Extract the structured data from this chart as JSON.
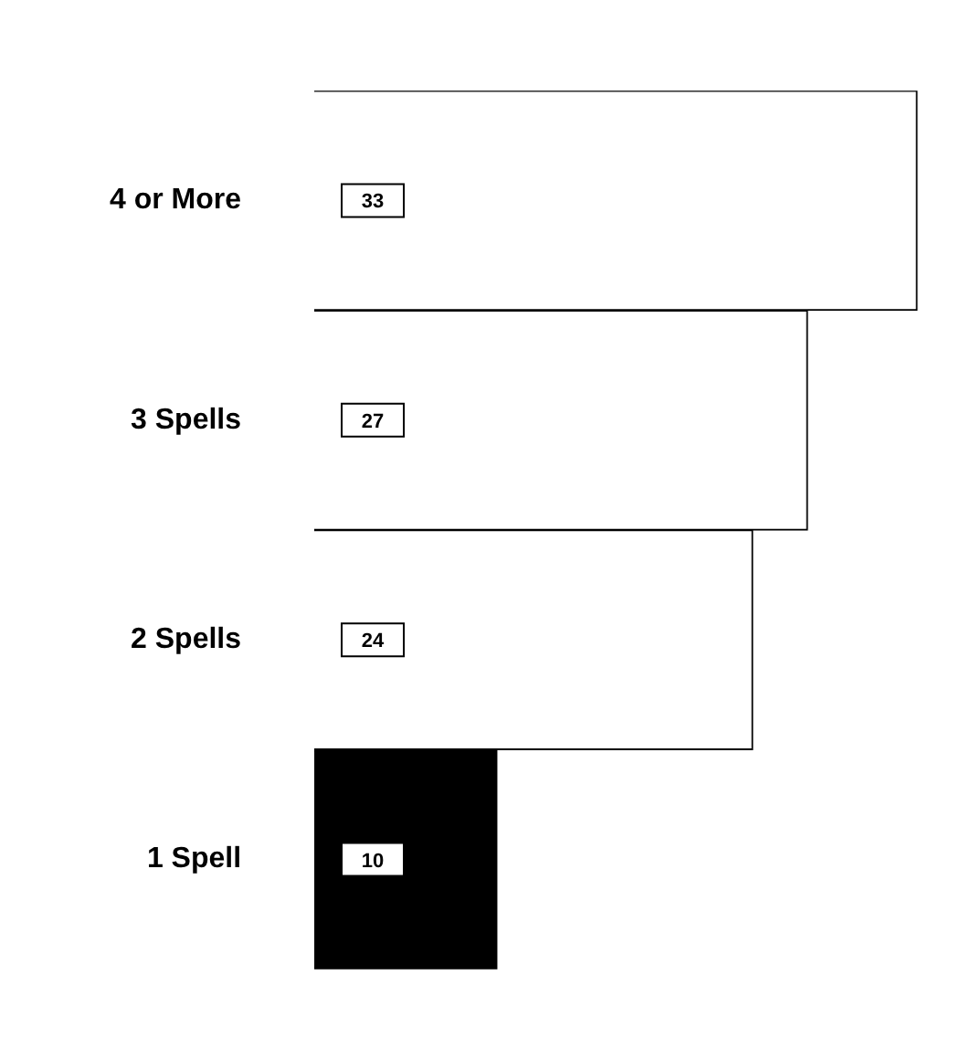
{
  "chart_data": {
    "type": "bar",
    "orientation": "horizontal",
    "categories": [
      "4 or More",
      "3 Spells",
      "2 Spells",
      "1 Spell"
    ],
    "values": [
      33,
      27,
      24,
      10
    ],
    "colors": [
      "#ffffff",
      "#ffffff",
      "#ffffff",
      "#000000"
    ],
    "data_labels": true,
    "grid": false,
    "legend": false
  }
}
